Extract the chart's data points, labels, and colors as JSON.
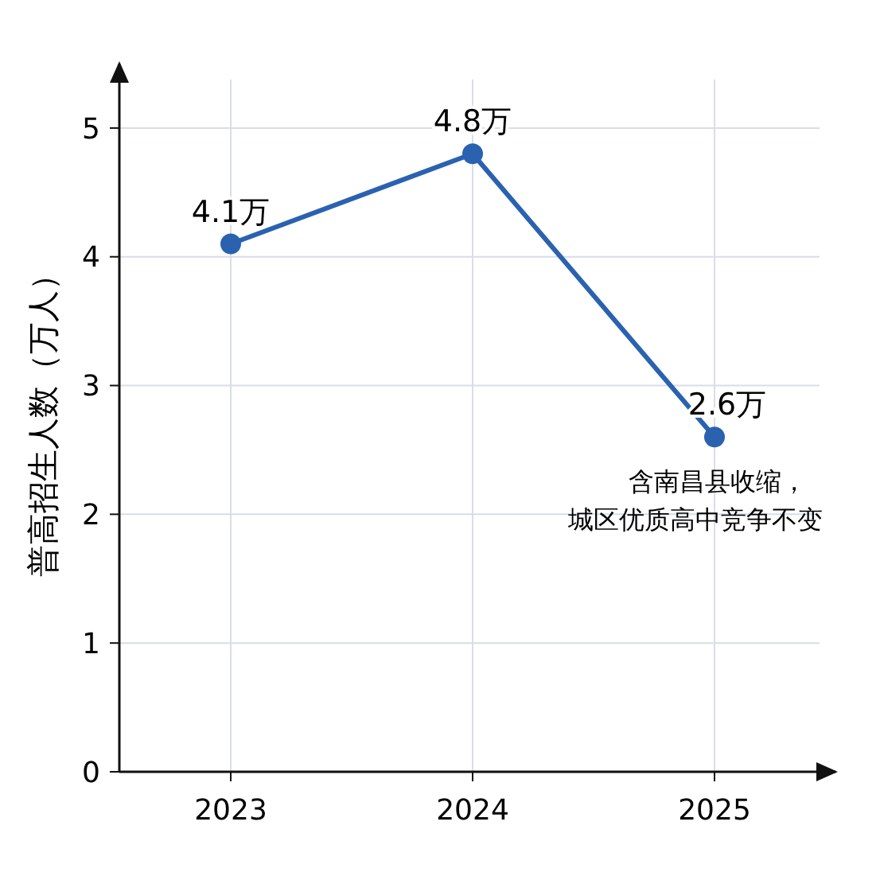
{
  "chart_data": {
    "type": "line",
    "ylabel": "普高招生人数（万人）",
    "categories": [
      "2023",
      "2024",
      "2025"
    ],
    "series": [
      {
        "color": "#2a62b0",
        "values": [
          4.1,
          4.8,
          2.6
        ],
        "value_labels": [
          "4.1万",
          "4.8万",
          "2.6万"
        ]
      }
    ],
    "ylim": [
      0,
      5.5
    ],
    "yticks": [
      0,
      1,
      2,
      3,
      4,
      5
    ],
    "grid": true,
    "marker": "circle",
    "line_style": "solid",
    "annotations": [
      "含南昌县收缩，",
      "城区优质高中竞争不变"
    ]
  }
}
